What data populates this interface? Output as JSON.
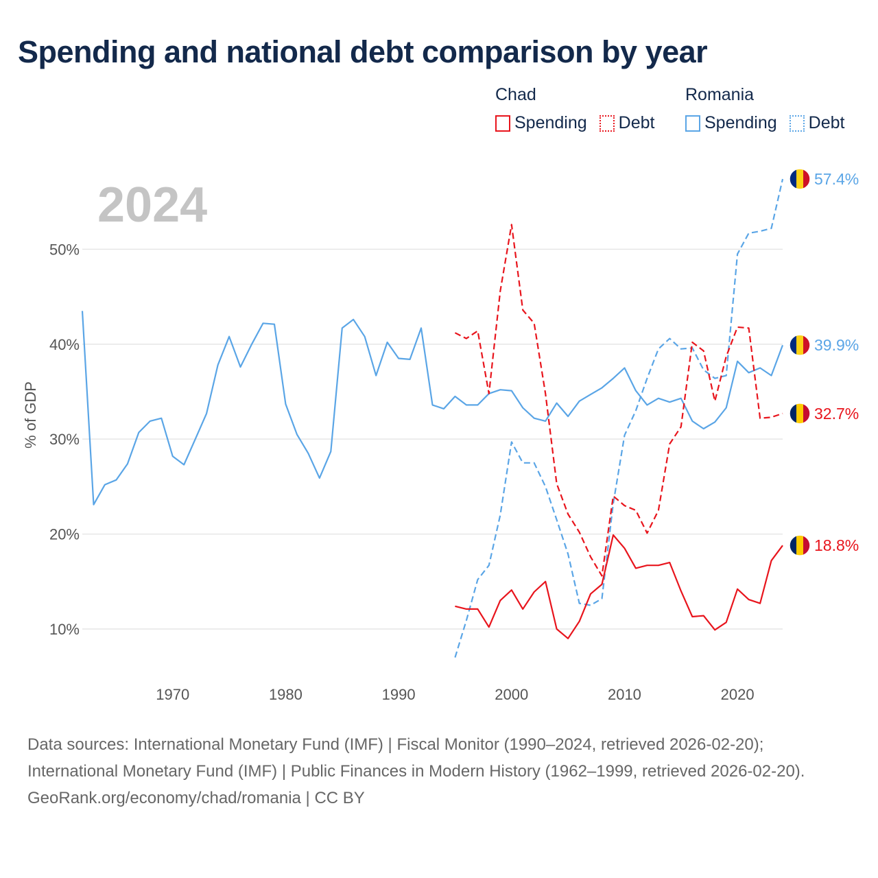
{
  "title": "Spending and national debt comparison by year",
  "legend": {
    "groups": [
      {
        "country": "Chad",
        "color": "#e8141c",
        "items": [
          {
            "label": "Spending",
            "style": "solid"
          },
          {
            "label": "Debt",
            "style": "dotted"
          }
        ]
      },
      {
        "country": "Romania",
        "color": "#5aa5e6",
        "items": [
          {
            "label": "Spending",
            "style": "solid"
          },
          {
            "label": "Debt",
            "style": "dotted"
          }
        ]
      }
    ]
  },
  "footer": {
    "sources": "Data sources: International Monetary Fund (IMF) | Fiscal Monitor (1990–2024, retrieved 2026-02-20); International Monetary Fund (IMF) | Public Finances in Modern History (1962–1999, retrieved 2026-02-20).",
    "link": "GeoRank.org/economy/chad/romania | CC BY"
  },
  "chart_data": {
    "type": "line",
    "current_year_label": "2024",
    "ylabel": "% of GDP",
    "xlabel": "",
    "xlim": [
      1962,
      2024
    ],
    "ylim": [
      4,
      60
    ],
    "xticks": [
      1970,
      1980,
      1990,
      2000,
      2010,
      2020
    ],
    "xtick_labels": [
      "1970",
      "1980",
      "1990",
      "2000",
      "2010",
      "2020"
    ],
    "yticks": [
      10,
      20,
      30,
      40,
      50
    ],
    "ytick_labels": [
      "10%",
      "20%",
      "30%",
      "40%",
      "50%"
    ],
    "grid": true,
    "series": [
      {
        "name": "Romania Spending",
        "country": "Romania",
        "measure": "Spending",
        "color": "#5aa5e6",
        "dash": "solid",
        "end_label": "39.9%",
        "flag": "romania-flag",
        "x": [
          1962,
          1963,
          1964,
          1965,
          1966,
          1967,
          1968,
          1969,
          1970,
          1971,
          1972,
          1973,
          1974,
          1975,
          1976,
          1977,
          1978,
          1979,
          1980,
          1981,
          1982,
          1983,
          1984,
          1985,
          1986,
          1987,
          1988,
          1989,
          1990,
          1991,
          1992,
          1993,
          1994,
          1995,
          1996,
          1997,
          1998,
          1999,
          2000,
          2001,
          2002,
          2003,
          2004,
          2005,
          2006,
          2007,
          2008,
          2009,
          2010,
          2011,
          2012,
          2013,
          2014,
          2015,
          2016,
          2017,
          2018,
          2019,
          2020,
          2021,
          2022,
          2023,
          2024
        ],
        "values": [
          43.5,
          23.1,
          25.2,
          25.7,
          27.4,
          30.7,
          31.9,
          32.2,
          28.2,
          27.3,
          30.0,
          32.7,
          37.8,
          40.8,
          37.6,
          40.0,
          42.2,
          42.1,
          33.7,
          30.5,
          28.5,
          25.9,
          28.7,
          41.7,
          42.6,
          40.8,
          36.7,
          40.2,
          38.5,
          38.4,
          41.7,
          33.6,
          33.2,
          34.5,
          33.6,
          33.6,
          34.8,
          35.2,
          35.1,
          33.3,
          32.2,
          31.9,
          33.8,
          32.4,
          34.0,
          34.7,
          35.4,
          36.4,
          37.5,
          35.1,
          33.6,
          34.3,
          33.9,
          34.3,
          31.9,
          31.1,
          31.8,
          33.3,
          38.2,
          37.0,
          37.5,
          36.7,
          39.9
        ]
      },
      {
        "name": "Romania Debt",
        "country": "Romania",
        "measure": "Debt",
        "color": "#5aa5e6",
        "dash": "dashed",
        "end_label": "57.4%",
        "flag": "romania-flag",
        "x": [
          1995,
          1996,
          1997,
          1998,
          1999,
          2000,
          2001,
          2002,
          2003,
          2004,
          2005,
          2006,
          2007,
          2008,
          2009,
          2010,
          2011,
          2012,
          2013,
          2014,
          2015,
          2016,
          2017,
          2018,
          2019,
          2020,
          2021,
          2022,
          2023,
          2024
        ],
        "values": [
          7.0,
          10.9,
          15.2,
          16.7,
          22.0,
          29.7,
          27.5,
          27.5,
          25.0,
          21.5,
          17.9,
          12.7,
          12.5,
          13.2,
          23.2,
          30.4,
          33.0,
          36.4,
          39.5,
          40.6,
          39.5,
          39.6,
          37.3,
          36.4,
          36.7,
          49.5,
          51.7,
          51.9,
          52.2,
          57.4
        ]
      },
      {
        "name": "Chad Spending",
        "country": "Chad",
        "measure": "Spending",
        "color": "#e8141c",
        "dash": "solid",
        "end_label": "18.8%",
        "flag": "chad-flag",
        "x": [
          1995,
          1996,
          1997,
          1998,
          1999,
          2000,
          2001,
          2002,
          2003,
          2004,
          2005,
          2006,
          2007,
          2008,
          2009,
          2010,
          2011,
          2012,
          2013,
          2014,
          2015,
          2016,
          2017,
          2018,
          2019,
          2020,
          2021,
          2022,
          2023,
          2024
        ],
        "values": [
          12.4,
          12.1,
          12.1,
          10.2,
          13.0,
          14.1,
          12.1,
          13.9,
          15.0,
          10.0,
          9.0,
          10.8,
          13.7,
          14.7,
          19.9,
          18.5,
          16.4,
          16.7,
          16.7,
          17.0,
          14.0,
          11.3,
          11.4,
          9.9,
          10.7,
          14.2,
          13.1,
          12.7,
          17.2,
          18.8
        ]
      },
      {
        "name": "Chad Debt",
        "country": "Chad",
        "measure": "Debt",
        "color": "#e8141c",
        "dash": "dashed",
        "end_label": "32.7%",
        "flag": "chad-flag",
        "x": [
          1995,
          1996,
          1997,
          1998,
          1999,
          2000,
          2001,
          2002,
          2003,
          2004,
          2005,
          2006,
          2007,
          2008,
          2009,
          2010,
          2011,
          2012,
          2013,
          2014,
          2015,
          2016,
          2017,
          2018,
          2019,
          2020,
          2021,
          2022,
          2023,
          2024
        ],
        "values": [
          41.2,
          40.6,
          41.4,
          34.8,
          45.6,
          52.6,
          43.6,
          42.2,
          34.8,
          25.3,
          22.1,
          20.2,
          17.6,
          15.6,
          24.0,
          23.0,
          22.5,
          20.1,
          22.5,
          29.5,
          31.3,
          40.2,
          39.3,
          34.0,
          38.7,
          41.8,
          41.7,
          32.2,
          32.3,
          32.7
        ]
      }
    ]
  }
}
